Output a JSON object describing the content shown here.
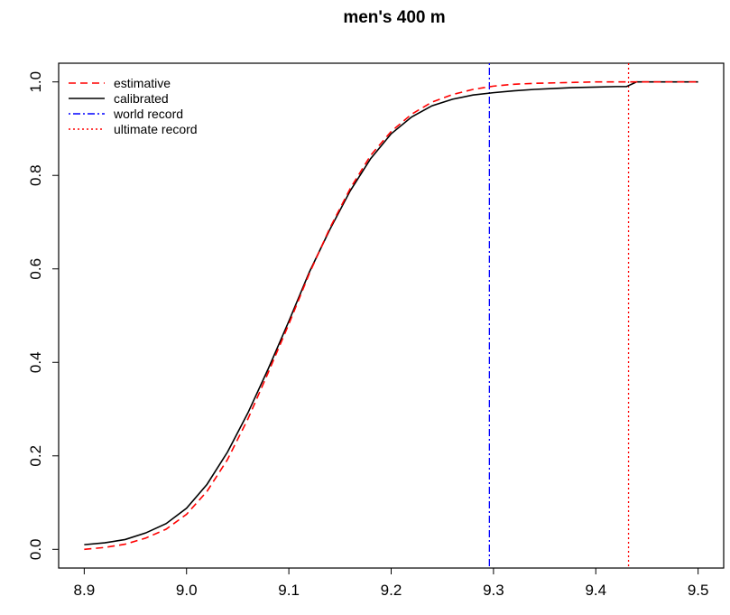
{
  "chart_data": {
    "type": "line",
    "title": "men's 400 m",
    "xlabel": "",
    "ylabel": "",
    "xlim": [
      8.875,
      9.525
    ],
    "ylim": [
      -0.04,
      1.04
    ],
    "xticks": [
      8.9,
      9.0,
      9.1,
      9.2,
      9.3,
      9.4,
      9.5
    ],
    "xtick_labels": [
      "8.9",
      "9.0",
      "9.1",
      "9.2",
      "9.3",
      "9.4",
      "9.5"
    ],
    "yticks": [
      0.0,
      0.2,
      0.4,
      0.6,
      0.8,
      1.0
    ],
    "ytick_labels": [
      "0.0",
      "0.2",
      "0.4",
      "0.6",
      "0.8",
      "1.0"
    ],
    "grid": false,
    "legend_position": "top-left",
    "series": [
      {
        "name": "estimative",
        "color": "#ff0000",
        "dash": "dashed",
        "x": [
          8.9,
          8.92,
          8.94,
          8.96,
          8.98,
          9.0,
          9.02,
          9.04,
          9.06,
          9.08,
          9.1,
          9.12,
          9.14,
          9.16,
          9.18,
          9.2,
          9.22,
          9.24,
          9.26,
          9.28,
          9.3,
          9.32,
          9.34,
          9.36,
          9.38,
          9.4,
          9.42,
          9.43,
          9.44,
          9.46,
          9.48,
          9.5
        ],
        "y": [
          0.0,
          0.004,
          0.011,
          0.024,
          0.043,
          0.075,
          0.124,
          0.192,
          0.279,
          0.379,
          0.482,
          0.59,
          0.687,
          0.772,
          0.843,
          0.894,
          0.931,
          0.957,
          0.973,
          0.984,
          0.991,
          0.995,
          0.997,
          0.998,
          0.999,
          1.0,
          1.0,
          1.0,
          1.0,
          1.0,
          1.0,
          1.0
        ]
      },
      {
        "name": "calibrated",
        "color": "#000000",
        "dash": "solid",
        "x": [
          8.9,
          8.92,
          8.94,
          8.96,
          8.98,
          9.0,
          9.02,
          9.04,
          9.06,
          9.08,
          9.1,
          9.12,
          9.14,
          9.16,
          9.18,
          9.2,
          9.22,
          9.24,
          9.26,
          9.28,
          9.3,
          9.32,
          9.34,
          9.36,
          9.38,
          9.4,
          9.42,
          9.43,
          9.44,
          9.46,
          9.48,
          9.5
        ],
        "y": [
          0.01,
          0.014,
          0.021,
          0.035,
          0.055,
          0.088,
          0.139,
          0.208,
          0.292,
          0.387,
          0.488,
          0.593,
          0.684,
          0.767,
          0.836,
          0.889,
          0.925,
          0.949,
          0.963,
          0.972,
          0.977,
          0.981,
          0.984,
          0.986,
          0.988,
          0.989,
          0.99,
          0.99,
          1.0,
          1.0,
          1.0,
          1.0
        ]
      }
    ],
    "vlines": [
      {
        "name": "world record",
        "x": 9.296,
        "color": "#0000ff",
        "dash": "dotdash"
      },
      {
        "name": "ultimate record",
        "x": 9.432,
        "color": "#ff0000",
        "dash": "dotted"
      }
    ],
    "legend": [
      {
        "label": "estimative",
        "color": "#ff0000",
        "dash": "dashed"
      },
      {
        "label": "calibrated",
        "color": "#000000",
        "dash": "solid"
      },
      {
        "label": "world record",
        "color": "#0000ff",
        "dash": "dotdash"
      },
      {
        "label": "ultimate record",
        "color": "#ff0000",
        "dash": "dotted"
      }
    ]
  }
}
